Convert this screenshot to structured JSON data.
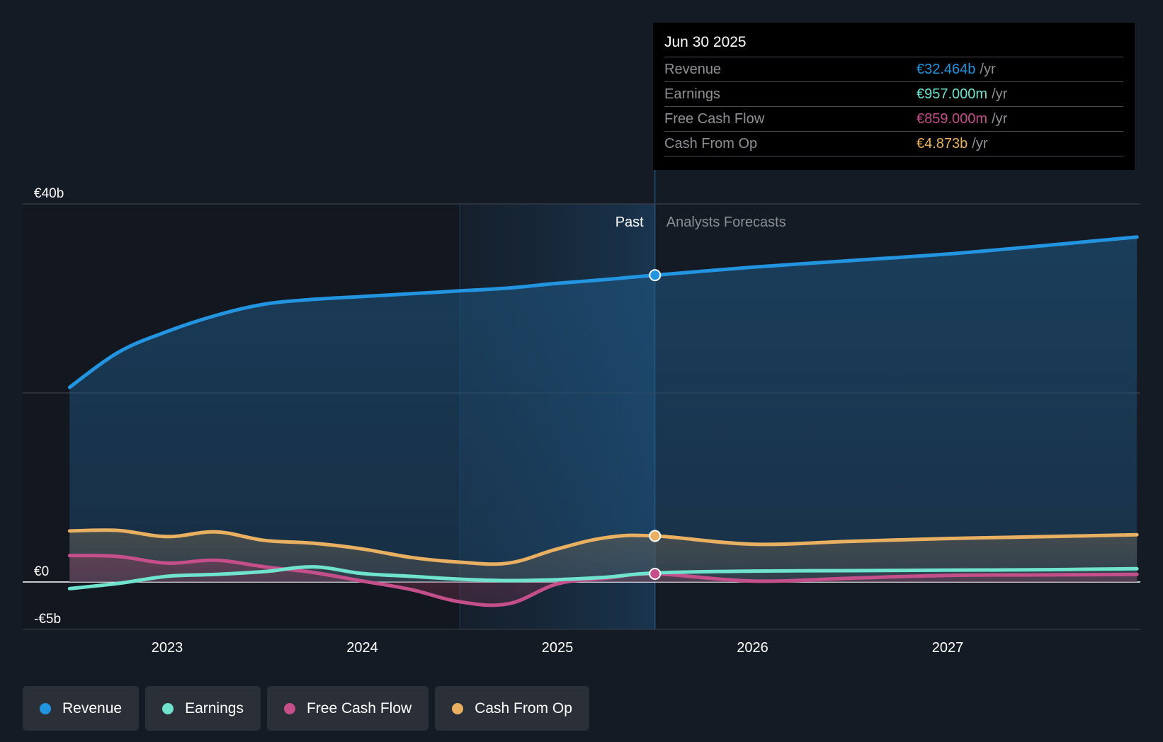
{
  "chart_data": {
    "type": "line",
    "title": "",
    "xlabel": "",
    "ylabel": "",
    "currency": "€",
    "ylim": [
      -5,
      40
    ],
    "y_ticks": [
      {
        "value": 40,
        "label": "€40b"
      },
      {
        "value": 20,
        "label": ""
      },
      {
        "value": 0,
        "label": "€0"
      },
      {
        "value": -5,
        "label": "-€5b"
      }
    ],
    "xlim": [
      2022.27,
      2027.97
    ],
    "x_ticks": [
      {
        "value": 2023,
        "label": "2023"
      },
      {
        "value": 2024,
        "label": "2024"
      },
      {
        "value": 2025,
        "label": "2025"
      },
      {
        "value": 2026,
        "label": "2026"
      },
      {
        "value": 2027,
        "label": "2027"
      }
    ],
    "past_start": 2024.5,
    "divider_date": 2025.5,
    "regions": {
      "past": "Past",
      "forecast": "Analysts Forecasts"
    },
    "grid": true,
    "legend_position": "bottom-left",
    "series": [
      {
        "name": "Revenue",
        "color": "#2394e0",
        "fill": true,
        "points": [
          [
            2022.5,
            20.6
          ],
          [
            2022.75,
            24.3
          ],
          [
            2023.0,
            26.5
          ],
          [
            2023.25,
            28.2
          ],
          [
            2023.5,
            29.4
          ],
          [
            2023.75,
            29.9
          ],
          [
            2024.0,
            30.2
          ],
          [
            2024.25,
            30.5
          ],
          [
            2024.5,
            30.8
          ],
          [
            2024.75,
            31.1
          ],
          [
            2025.0,
            31.6
          ],
          [
            2025.25,
            32.0
          ],
          [
            2025.5,
            32.464
          ],
          [
            2026.0,
            33.3
          ],
          [
            2026.5,
            34.0
          ],
          [
            2027.0,
            34.7
          ],
          [
            2027.5,
            35.6
          ],
          [
            2027.97,
            36.5
          ]
        ]
      },
      {
        "name": "Cash From Op",
        "color": "#e8b060",
        "fill": true,
        "points": [
          [
            2022.5,
            5.4
          ],
          [
            2022.75,
            5.45
          ],
          [
            2023.0,
            4.8
          ],
          [
            2023.25,
            5.3
          ],
          [
            2023.5,
            4.4
          ],
          [
            2023.75,
            4.1
          ],
          [
            2024.0,
            3.5
          ],
          [
            2024.25,
            2.6
          ],
          [
            2024.5,
            2.1
          ],
          [
            2024.75,
            2.0
          ],
          [
            2025.0,
            3.5
          ],
          [
            2025.25,
            4.7
          ],
          [
            2025.5,
            4.873
          ],
          [
            2026.0,
            4.0
          ],
          [
            2026.5,
            4.3
          ],
          [
            2027.0,
            4.6
          ],
          [
            2027.5,
            4.8
          ],
          [
            2027.97,
            5.0
          ]
        ]
      },
      {
        "name": "Free Cash Flow",
        "color": "#c44f8a",
        "fill": true,
        "points": [
          [
            2022.5,
            2.8
          ],
          [
            2022.75,
            2.7
          ],
          [
            2023.0,
            2.0
          ],
          [
            2023.25,
            2.3
          ],
          [
            2023.5,
            1.6
          ],
          [
            2023.75,
            1.0
          ],
          [
            2024.0,
            0.1
          ],
          [
            2024.25,
            -0.8
          ],
          [
            2024.5,
            -2.1
          ],
          [
            2024.75,
            -2.3
          ],
          [
            2025.0,
            -0.2
          ],
          [
            2025.25,
            0.4
          ],
          [
            2025.5,
            0.859
          ],
          [
            2026.0,
            0.1
          ],
          [
            2026.5,
            0.4
          ],
          [
            2027.0,
            0.7
          ],
          [
            2027.5,
            0.75
          ],
          [
            2027.97,
            0.8
          ]
        ]
      },
      {
        "name": "Earnings",
        "color": "#6fe3cd",
        "fill": false,
        "points": [
          [
            2022.5,
            -0.7
          ],
          [
            2022.75,
            -0.15
          ],
          [
            2023.0,
            0.6
          ],
          [
            2023.25,
            0.8
          ],
          [
            2023.5,
            1.1
          ],
          [
            2023.75,
            1.6
          ],
          [
            2024.0,
            0.9
          ],
          [
            2024.25,
            0.6
          ],
          [
            2024.5,
            0.3
          ],
          [
            2024.75,
            0.15
          ],
          [
            2025.0,
            0.25
          ],
          [
            2025.25,
            0.5
          ],
          [
            2025.5,
            0.957
          ],
          [
            2026.0,
            1.15
          ],
          [
            2026.5,
            1.2
          ],
          [
            2027.0,
            1.25
          ],
          [
            2027.5,
            1.3
          ],
          [
            2027.97,
            1.4
          ]
        ]
      }
    ],
    "highlight_markers": [
      {
        "series": "Revenue",
        "x": 2025.5,
        "y": 32.464
      },
      {
        "series": "Cash From Op",
        "x": 2025.5,
        "y": 4.873
      },
      {
        "series": "Free Cash Flow",
        "x": 2025.5,
        "y": 0.859
      }
    ]
  },
  "tooltip": {
    "date": "Jun 30 2025",
    "rows": [
      {
        "label": "Revenue",
        "value": "€32.464b",
        "unit": "/yr",
        "color": "#2394e0"
      },
      {
        "label": "Earnings",
        "value": "€957.000m",
        "unit": "/yr",
        "color": "#6fe3cd"
      },
      {
        "label": "Free Cash Flow",
        "value": "€859.000m",
        "unit": "/yr",
        "color": "#c44f8a"
      },
      {
        "label": "Cash From Op",
        "value": "€4.873b",
        "unit": "/yr",
        "color": "#e8b060"
      }
    ]
  },
  "legend": [
    {
      "label": "Revenue",
      "color": "#2394e0",
      "icon": "dot-icon"
    },
    {
      "label": "Earnings",
      "color": "#6fe3cd",
      "icon": "dot-icon"
    },
    {
      "label": "Free Cash Flow",
      "color": "#c44f8a",
      "icon": "dot-icon"
    },
    {
      "label": "Cash From Op",
      "color": "#e8b060",
      "icon": "dot-icon"
    }
  ]
}
